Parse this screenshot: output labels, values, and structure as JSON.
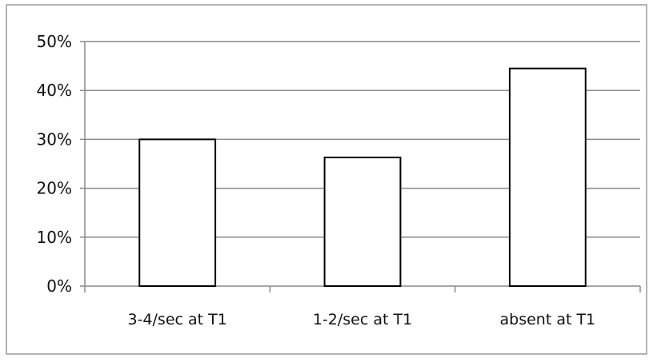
{
  "chart_data": {
    "type": "bar",
    "title": "",
    "xlabel": "",
    "ylabel": "",
    "categories": [
      "3-4/sec at T1",
      "1-2/sec at T1",
      "absent at T1"
    ],
    "values": [
      30,
      26.3,
      44.5
    ],
    "value_unit": "%",
    "ylim": [
      0,
      50
    ],
    "yticks": [
      "0%",
      "10%",
      "20%",
      "30%",
      "40%",
      "50%"
    ],
    "grid": true,
    "legend": "none",
    "colors": {
      "bar_fill": "#ffffff",
      "bar_stroke": "#000000",
      "grid": "#8a8a8a",
      "frame": "#9a9a9a"
    }
  }
}
